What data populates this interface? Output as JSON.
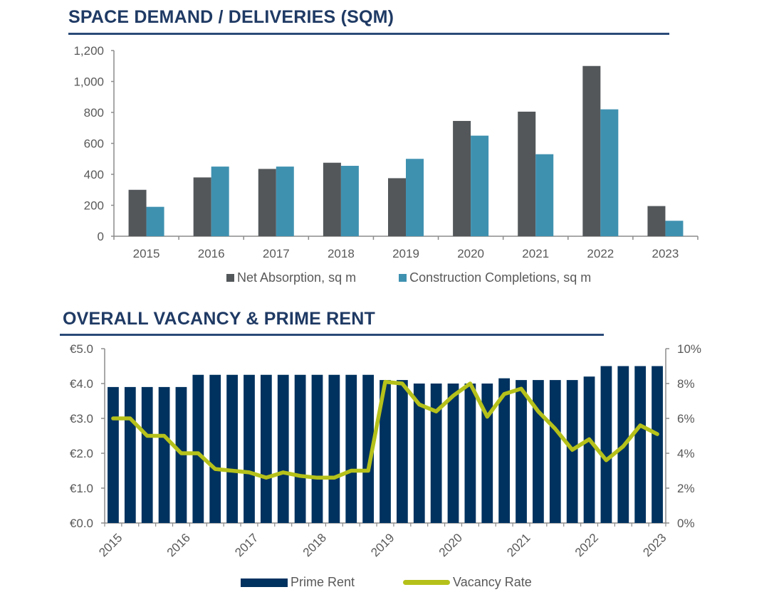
{
  "titles": {
    "top": "SPACE DEMAND / DELIVERIES (SQM)",
    "bottom": "OVERALL VACANCY & PRIME RENT"
  },
  "colors": {
    "title": "#1f3a64",
    "net_absorption": "#53575a",
    "construction_completions": "#3f91b0",
    "prime_rent": "#00325f",
    "vacancy_rate": "#b5c11a",
    "axis": "#8c8c8c",
    "tick_text": "#595959"
  },
  "chart_data": [
    {
      "type": "bar",
      "title": "SPACE DEMAND / DELIVERIES (SQM)",
      "xlabel": "",
      "ylabel": "",
      "categories": [
        "2015",
        "2016",
        "2017",
        "2018",
        "2019",
        "2020",
        "2021",
        "2022",
        "2023"
      ],
      "series": [
        {
          "name": "Net Absorption, sq m",
          "values": [
            300,
            380,
            435,
            475,
            375,
            745,
            805,
            1100,
            195
          ]
        },
        {
          "name": "Construction Completions, sq m",
          "values": [
            190,
            450,
            450,
            455,
            500,
            650,
            530,
            820,
            100
          ]
        }
      ],
      "ylim": [
        0,
        1200
      ],
      "yticks": [
        0,
        200,
        400,
        600,
        800,
        1000,
        1200
      ],
      "ytick_labels": [
        "0",
        "200",
        "400",
        "600",
        "800",
        "1,000",
        "1,200"
      ],
      "grid": false,
      "legend": "bottom"
    },
    {
      "type": "bar",
      "title": "OVERALL VACANCY & PRIME RENT",
      "xlabel": "",
      "ylabel": "",
      "x_labels": [
        "2015",
        "2016",
        "2017",
        "2018",
        "2019",
        "2020",
        "2021",
        "2022",
        "2023"
      ],
      "periods_per_label": 4,
      "series": [
        {
          "name": "Prime Rent",
          "type": "bar",
          "axis": "left",
          "values": [
            3.9,
            3.9,
            3.9,
            3.9,
            3.9,
            4.25,
            4.25,
            4.25,
            4.25,
            4.25,
            4.25,
            4.25,
            4.25,
            4.25,
            4.25,
            4.25,
            4.1,
            4.1,
            4.0,
            4.0,
            4.0,
            4.0,
            4.0,
            4.15,
            4.1,
            4.1,
            4.1,
            4.1,
            4.2,
            4.5,
            4.5,
            4.5,
            4.5
          ]
        },
        {
          "name": "Vacancy Rate",
          "type": "line",
          "axis": "right",
          "values": [
            6.0,
            6.0,
            5.0,
            5.0,
            4.0,
            4.0,
            3.1,
            3.0,
            2.9,
            2.6,
            2.9,
            2.7,
            2.6,
            2.6,
            3.0,
            3.0,
            8.1,
            8.0,
            6.8,
            6.4,
            7.3,
            8.0,
            6.1,
            7.4,
            7.7,
            6.4,
            5.4,
            4.2,
            4.8,
            3.6,
            4.4,
            5.6,
            5.1
          ]
        }
      ],
      "ylim_left": [
        0,
        5
      ],
      "yticks_left": [
        0,
        1,
        2,
        3,
        4,
        5
      ],
      "ytick_labels_left": [
        "€0.0",
        "€1.0",
        "€2.0",
        "€3.0",
        "€4.0",
        "€5.0"
      ],
      "ylim_right": [
        0,
        10
      ],
      "yticks_right": [
        0,
        2,
        4,
        6,
        8,
        10
      ],
      "ytick_labels_right": [
        "0%",
        "2%",
        "4%",
        "6%",
        "8%",
        "10%"
      ],
      "grid": false,
      "legend": "bottom"
    }
  ],
  "legends": {
    "top": [
      "Net Absorption, sq m",
      "Construction Completions, sq m"
    ],
    "bottom": [
      "Prime Rent",
      "Vacancy Rate"
    ]
  }
}
